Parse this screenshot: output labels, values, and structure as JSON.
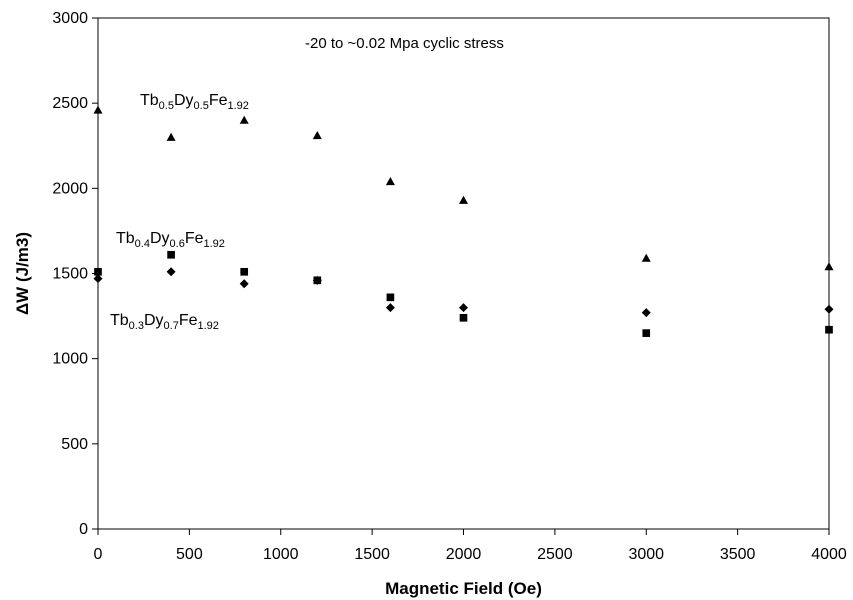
{
  "chart_data": {
    "type": "scatter",
    "title": "",
    "annotation": "-20 to ~0.02 Mpa cyclic stress",
    "xlabel": "Magnetic Field (Oe)",
    "ylabel": "ΔW (J/m3)",
    "xlim": [
      0,
      4000
    ],
    "ylim": [
      0,
      3000
    ],
    "xticks": [
      0,
      500,
      1000,
      1500,
      2000,
      2500,
      3000,
      3500,
      4000
    ],
    "yticks": [
      0,
      500,
      1000,
      1500,
      2000,
      2500,
      3000
    ],
    "grid": false,
    "legend": "none",
    "series": [
      {
        "name": "Tb0.5Dy0.5Fe1.92",
        "label_parts": [
          [
            "Tb",
            ""
          ],
          [
            "0.5",
            "sub"
          ],
          [
            "Dy",
            ""
          ],
          [
            "0.5",
            "sub"
          ],
          [
            "Fe",
            ""
          ],
          [
            "1.92",
            "sub"
          ]
        ],
        "marker": "triangle",
        "x": [
          0,
          400,
          800,
          1200,
          1600,
          2000,
          3000,
          4000
        ],
        "y": [
          2460,
          2300,
          2400,
          2310,
          2040,
          1930,
          1590,
          1540
        ]
      },
      {
        "name": "Tb0.4Dy0.6Fe1.92",
        "label_parts": [
          [
            "Tb",
            ""
          ],
          [
            "0.4",
            "sub"
          ],
          [
            "Dy",
            ""
          ],
          [
            "0.6",
            "sub"
          ],
          [
            "Fe",
            ""
          ],
          [
            "1.92",
            "sub"
          ]
        ],
        "marker": "square",
        "x": [
          0,
          400,
          800,
          1200,
          1600,
          2000,
          3000,
          4000
        ],
        "y": [
          1510,
          1610,
          1510,
          1460,
          1360,
          1240,
          1150,
          1170
        ]
      },
      {
        "name": "Tb0.3Dy0.7Fe1.92",
        "label_parts": [
          [
            "Tb",
            ""
          ],
          [
            "0.3",
            "sub"
          ],
          [
            "Dy",
            ""
          ],
          [
            "0.7",
            "sub"
          ],
          [
            "Fe",
            ""
          ],
          [
            "1.92",
            "sub"
          ]
        ],
        "marker": "diamond",
        "x": [
          0,
          400,
          800,
          1200,
          1600,
          2000,
          3000,
          4000
        ],
        "y": [
          1470,
          1510,
          1440,
          1460,
          1300,
          1300,
          1270,
          1290
        ]
      }
    ]
  }
}
